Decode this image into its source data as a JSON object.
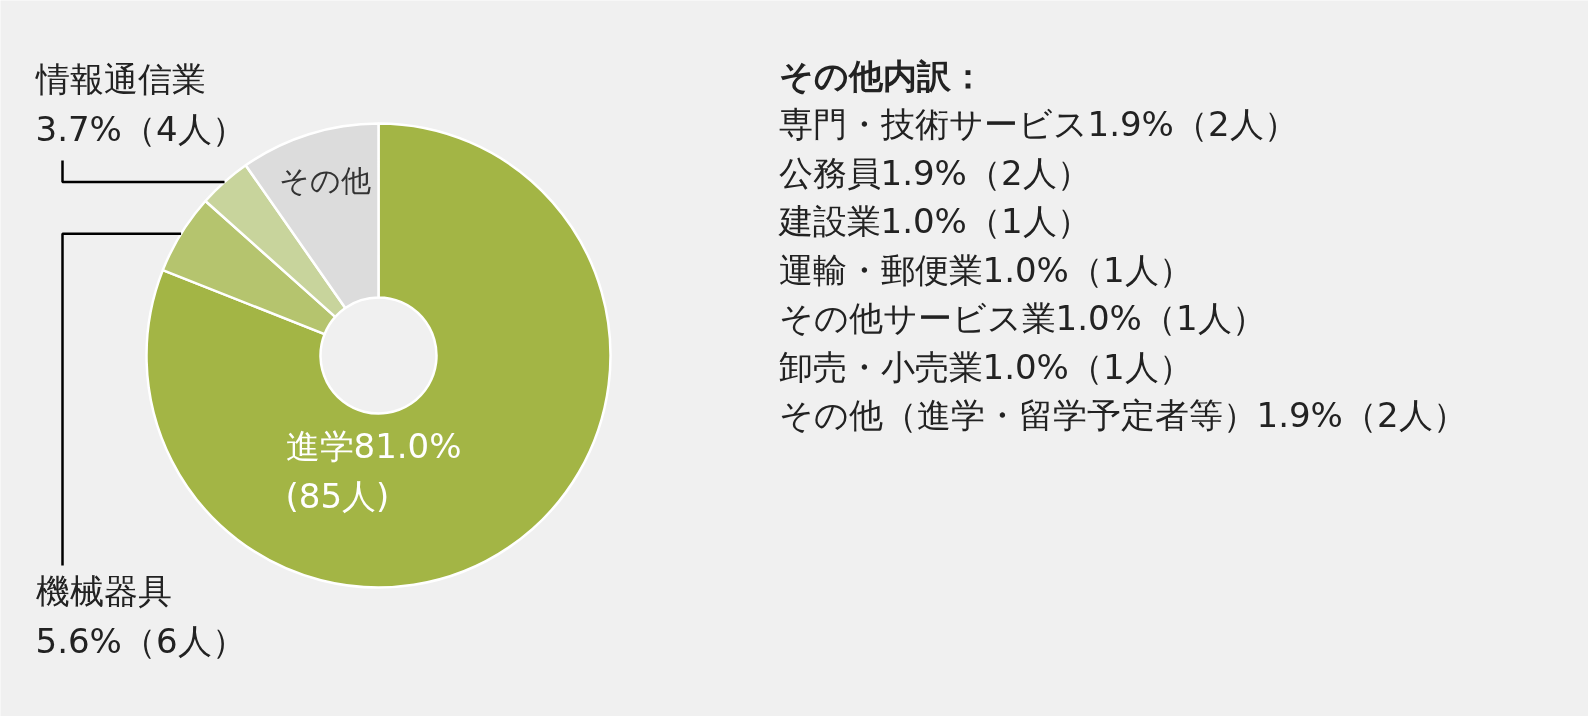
{
  "chart_data": {
    "type": "donut",
    "categories": [
      "進学",
      "機械器具",
      "情報通信業",
      "その他"
    ],
    "values": [
      81.0,
      5.6,
      3.7,
      9.7
    ],
    "colors": [
      "#a3b545",
      "#b5c46e",
      "#c8d49c",
      "#dcdcdc"
    ],
    "value_labels": [
      "81.0%\n(85人)",
      "5.6%（6人）",
      "3.7%（4人）",
      null
    ],
    "annotations": [
      "その他内訳：",
      "専門・技術サービス1.9%（2人）",
      "公務員1.9%（2人）",
      "建設業1.0%（1人）",
      "運輸・郵便業1.0%（1人）",
      "その他サービス業1.0%（1人）",
      "卸売・小売業1.0%（1人）",
      "その他（進学・留学予定者等）1.9%（2人）"
    ]
  }
}
